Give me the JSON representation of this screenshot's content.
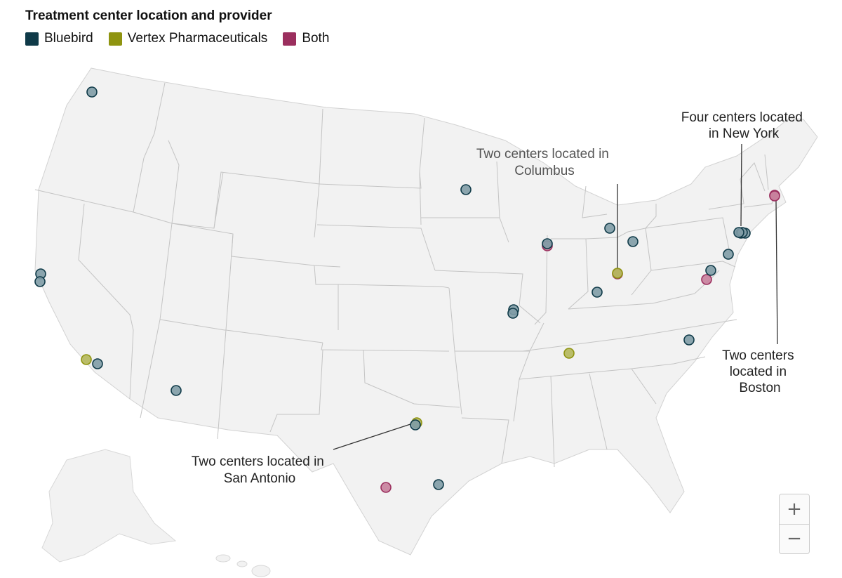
{
  "legend": {
    "title": "Treatment center location and provider",
    "items": [
      {
        "label": "Bluebird",
        "color": "#0f3a48"
      },
      {
        "label": "Vertex Pharmaceuticals",
        "color": "#8f9410"
      },
      {
        "label": "Both",
        "color": "#9b2f5e"
      }
    ]
  },
  "colors": {
    "bluebird_fill": "#7f9ca6",
    "bluebird_stroke": "#0f3a48",
    "bluebird_dark_fill": "#2c4a56",
    "vertex_fill": "#b4b75a",
    "vertex_stroke": "#8f9410",
    "both_fill": "#c8809c",
    "both_stroke": "#9b2f5e",
    "land": "#f2f2f2",
    "border": "#c4c4c4"
  },
  "annotations": {
    "new_york": [
      "Four centers located",
      "in New York"
    ],
    "columbus": [
      "Two centers located in",
      "Columbus"
    ],
    "boston": [
      "Two centers",
      "located in",
      "Boston"
    ],
    "san_antonio": [
      "Two centers located in",
      "San Antonio"
    ]
  },
  "centers": [
    {
      "state": "WA",
      "provider": "Bluebird"
    },
    {
      "state": "CA",
      "provider": "Bluebird"
    },
    {
      "state": "CA",
      "provider": "Bluebird"
    },
    {
      "state": "CA",
      "provider": "Vertex Pharmaceuticals"
    },
    {
      "state": "CA",
      "provider": "Bluebird"
    },
    {
      "state": "AZ",
      "provider": "Bluebird"
    },
    {
      "state": "MN",
      "provider": "Bluebird"
    },
    {
      "state": "IL",
      "provider": "Both"
    },
    {
      "state": "IL",
      "provider": "Bluebird"
    },
    {
      "state": "MI",
      "provider": "Bluebird"
    },
    {
      "state": "OH",
      "provider": "Bluebird"
    },
    {
      "state": "OH",
      "provider": "Both"
    },
    {
      "state": "OH",
      "provider": "Vertex Pharmaceuticals"
    },
    {
      "state": "IN",
      "provider": "Bluebird"
    },
    {
      "state": "MO",
      "provider": "Bluebird"
    },
    {
      "state": "MO",
      "provider": "Bluebird"
    },
    {
      "state": "TN",
      "provider": "Vertex Pharmaceuticals"
    },
    {
      "state": "NC",
      "provider": "Bluebird"
    },
    {
      "state": "VA",
      "provider": "Both"
    },
    {
      "state": "DC",
      "provider": "Bluebird"
    },
    {
      "state": "PA",
      "provider": "Bluebird"
    },
    {
      "state": "NY",
      "provider": "Bluebird"
    },
    {
      "state": "NY",
      "provider": "Bluebird"
    },
    {
      "state": "NY",
      "provider": "Bluebird"
    },
    {
      "state": "NY",
      "provider": "Bluebird"
    },
    {
      "state": "MA",
      "provider": "Both"
    },
    {
      "state": "MA",
      "provider": "Both"
    },
    {
      "state": "TX",
      "provider": "Vertex Pharmaceuticals"
    },
    {
      "state": "TX",
      "provider": "Bluebird"
    },
    {
      "state": "TX",
      "provider": "Both"
    },
    {
      "state": "TX",
      "provider": "Bluebird"
    }
  ],
  "zoom": {
    "in": "+",
    "out": "−"
  }
}
